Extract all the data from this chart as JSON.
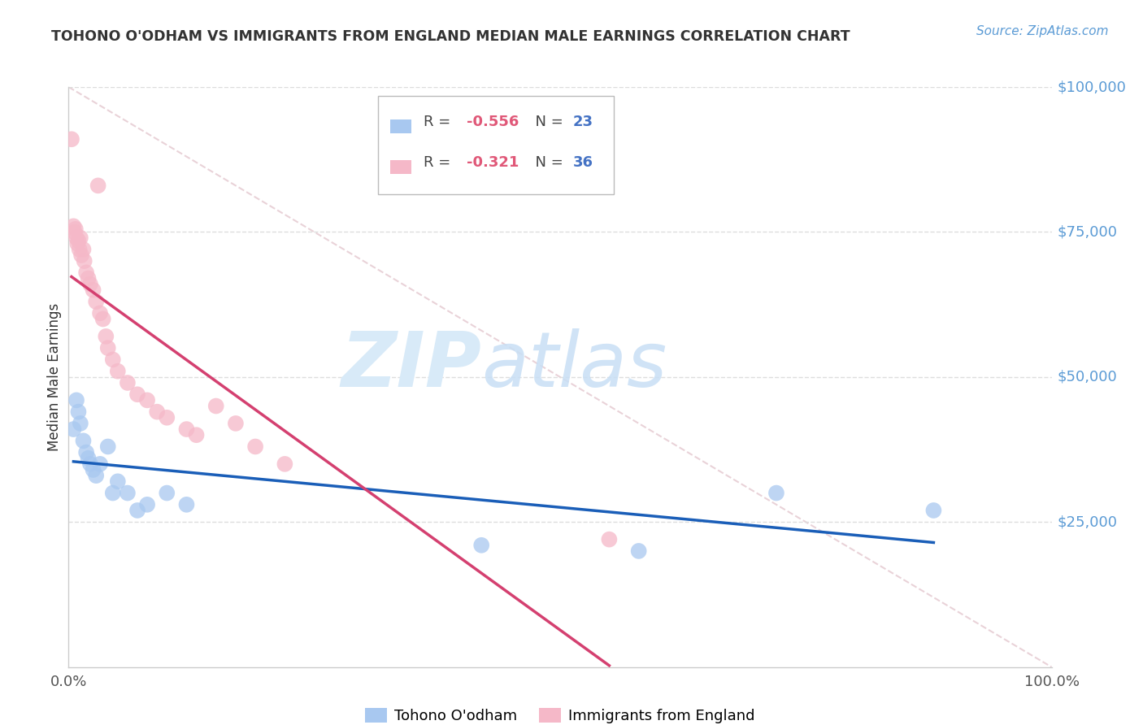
{
  "title": "TOHONO O'ODHAM VS IMMIGRANTS FROM ENGLAND MEDIAN MALE EARNINGS CORRELATION CHART",
  "source": "Source: ZipAtlas.com",
  "ylabel": "Median Male Earnings",
  "xlim": [
    0,
    1
  ],
  "ylim": [
    0,
    100000
  ],
  "legend_blue_r": "-0.556",
  "legend_blue_n": "23",
  "legend_pink_r": "-0.321",
  "legend_pink_n": "36",
  "blue_color": "#a8c8f0",
  "pink_color": "#f5b8c8",
  "trend_blue": "#1a5eb8",
  "trend_pink": "#d44070",
  "watermark_zip": "ZIP",
  "watermark_atlas": "atlas",
  "blue_points_x": [
    0.005,
    0.008,
    0.01,
    0.012,
    0.015,
    0.018,
    0.02,
    0.022,
    0.025,
    0.028,
    0.032,
    0.04,
    0.045,
    0.05,
    0.06,
    0.07,
    0.08,
    0.1,
    0.12,
    0.42,
    0.58,
    0.72,
    0.88
  ],
  "blue_points_y": [
    41000,
    46000,
    44000,
    42000,
    39000,
    37000,
    36000,
    35000,
    34000,
    33000,
    35000,
    38000,
    30000,
    32000,
    30000,
    27000,
    28000,
    30000,
    28000,
    21000,
    20000,
    30000,
    27000
  ],
  "pink_points_x": [
    0.003,
    0.005,
    0.006,
    0.007,
    0.008,
    0.009,
    0.01,
    0.011,
    0.012,
    0.013,
    0.015,
    0.016,
    0.018,
    0.02,
    0.022,
    0.025,
    0.028,
    0.032,
    0.035,
    0.038,
    0.04,
    0.045,
    0.05,
    0.06,
    0.07,
    0.08,
    0.09,
    0.1,
    0.12,
    0.13,
    0.15,
    0.17,
    0.19,
    0.22,
    0.55,
    0.03
  ],
  "pink_points_y": [
    91000,
    76000,
    75000,
    75500,
    74000,
    73000,
    73500,
    72000,
    74000,
    71000,
    72000,
    70000,
    68000,
    67000,
    66000,
    65000,
    63000,
    61000,
    60000,
    57000,
    55000,
    53000,
    51000,
    49000,
    47000,
    46000,
    44000,
    43000,
    41000,
    40000,
    45000,
    42000,
    38000,
    35000,
    22000,
    83000
  ],
  "diag_line_x": [
    0.0,
    1.0
  ],
  "diag_line_y": [
    100000,
    0
  ],
  "ytick_vals": [
    25000,
    50000,
    75000,
    100000
  ],
  "ytick_labels": [
    "$25,000",
    "$50,000",
    "$75,000",
    "$100,000"
  ],
  "xtick_vals": [
    0.0,
    1.0
  ],
  "xtick_labels": [
    "0.0%",
    "100.0%"
  ],
  "grid_color": "#dddddd",
  "spine_color": "#cccccc",
  "title_color": "#333333",
  "source_color": "#5b9bd5",
  "yaxis_label_color": "#333333",
  "right_tick_color": "#5b9bd5",
  "watermark_color": "#d8eaf8",
  "legend_r_color": "#e05878",
  "legend_n_color": "#4472c4"
}
